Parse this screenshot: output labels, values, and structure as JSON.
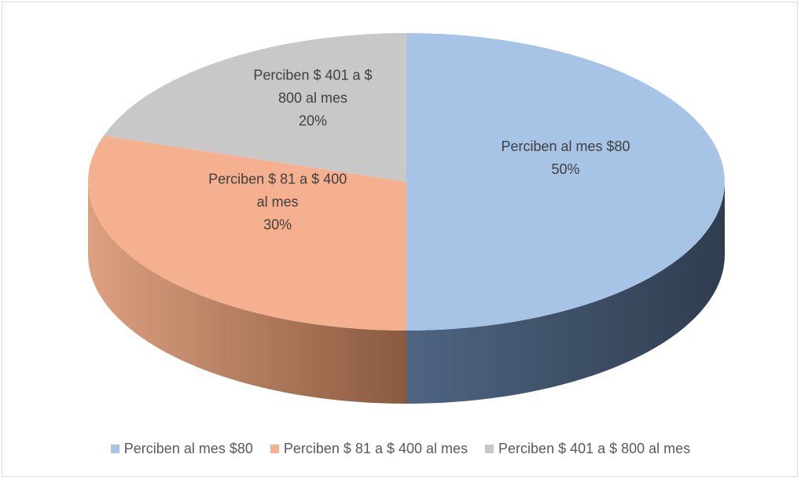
{
  "chart_data": {
    "type": "pie",
    "categories": [
      "Perciben al mes $80",
      "Perciben $ 81 a $ 400 al mes",
      "Perciben $ 401 a $ 800 al mes"
    ],
    "values": [
      50,
      30,
      20
    ],
    "value_labels": [
      "50%",
      "30%",
      "20%"
    ],
    "colors": [
      "#a7c3e6",
      "#f4b08f",
      "#c8c8c8"
    ],
    "legend": "bottom"
  }
}
